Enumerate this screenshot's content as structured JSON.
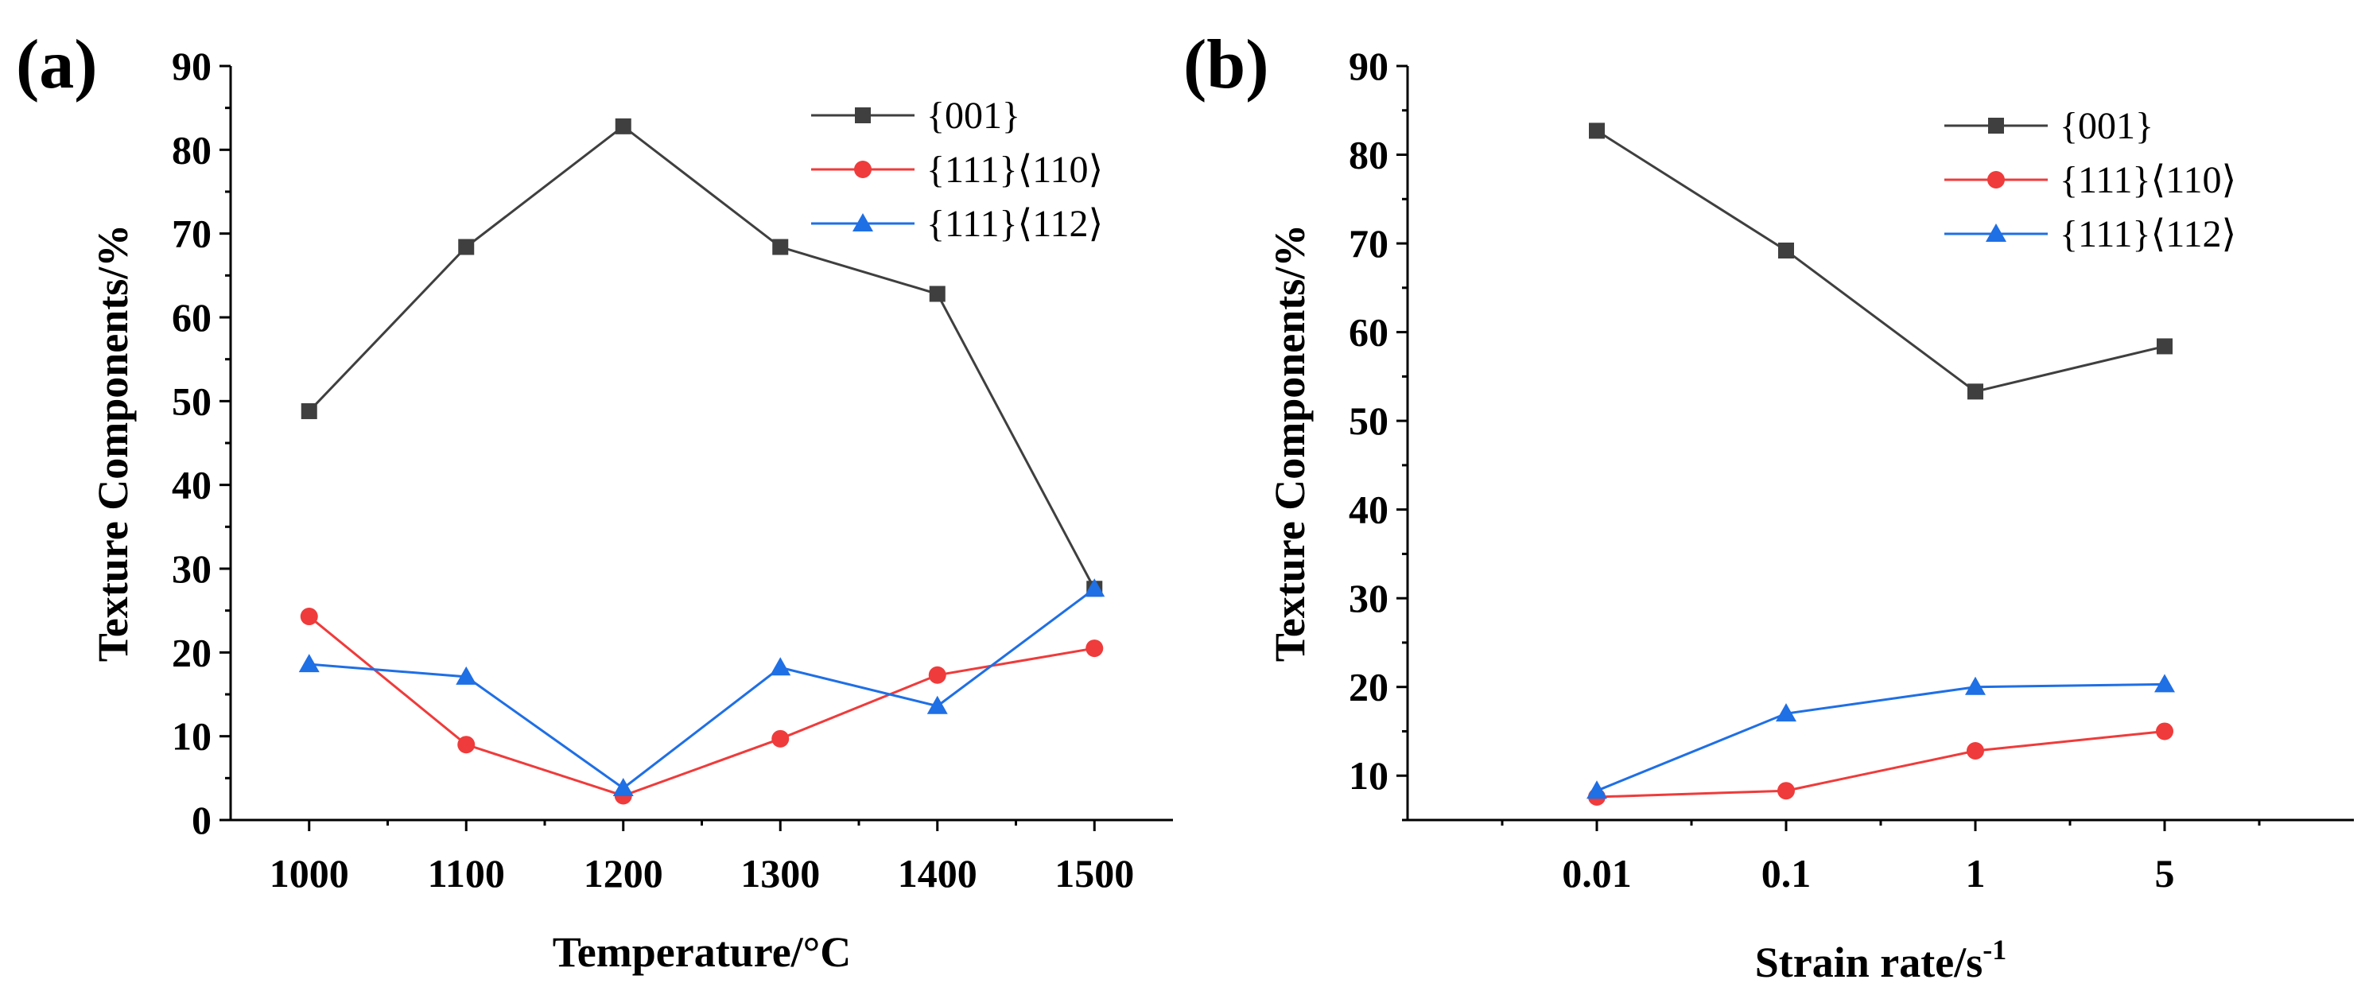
{
  "chart_data": [
    {
      "panel": "(a)",
      "type": "line",
      "xlabel": "Temperature/°C",
      "ylabel": "Texture Components/%",
      "x_scale": "linear",
      "categories": [
        "1000",
        "1100",
        "1200",
        "1300",
        "1400",
        "1500"
      ],
      "xlim": [
        950,
        1550
      ],
      "ylim": [
        0,
        90
      ],
      "yticks": [
        0,
        10,
        20,
        30,
        40,
        50,
        60,
        70,
        80,
        90
      ],
      "grid": false,
      "legend_position": "top-right",
      "series": [
        {
          "name": "{001}",
          "color": "#3f3f3f",
          "marker": "square",
          "x": [
            1000,
            1100,
            1200,
            1300,
            1400,
            1500
          ],
          "values": [
            48.8,
            68.4,
            82.8,
            68.4,
            62.8,
            27.6
          ]
        },
        {
          "name": "{111}⟨110⟩",
          "color": "#ef3b3b",
          "marker": "circle",
          "x": [
            1000,
            1100,
            1200,
            1300,
            1400,
            1500
          ],
          "values": [
            24.3,
            9.0,
            2.9,
            9.7,
            17.3,
            20.5
          ]
        },
        {
          "name": "{111}⟨112⟩",
          "color": "#1f6fe5",
          "marker": "triangle",
          "x": [
            1000,
            1100,
            1200,
            1300,
            1400,
            1500
          ],
          "values": [
            18.6,
            17.1,
            3.8,
            18.2,
            13.6,
            27.6
          ]
        }
      ]
    },
    {
      "panel": "(b)",
      "type": "line",
      "xlabel": "Strain rate/s",
      "xlabel_sup": "-1",
      "ylabel": "Texture Components/%",
      "x_scale": "categorical",
      "categories": [
        "0.01",
        "0.1",
        "1",
        "5"
      ],
      "ylim": [
        5,
        90
      ],
      "yticks": [
        10,
        20,
        30,
        40,
        50,
        60,
        70,
        80,
        90
      ],
      "grid": false,
      "legend_position": "top-right",
      "series": [
        {
          "name": "{001}",
          "color": "#3f3f3f",
          "marker": "square",
          "values": [
            82.7,
            69.2,
            53.3,
            58.4
          ]
        },
        {
          "name": "{111}⟨110⟩",
          "color": "#ef3b3b",
          "marker": "circle",
          "values": [
            7.6,
            8.3,
            12.8,
            15.0
          ]
        },
        {
          "name": "{111}⟨112⟩",
          "color": "#1f6fe5",
          "marker": "triangle",
          "values": [
            8.3,
            17.0,
            20.0,
            20.3
          ]
        }
      ]
    }
  ]
}
